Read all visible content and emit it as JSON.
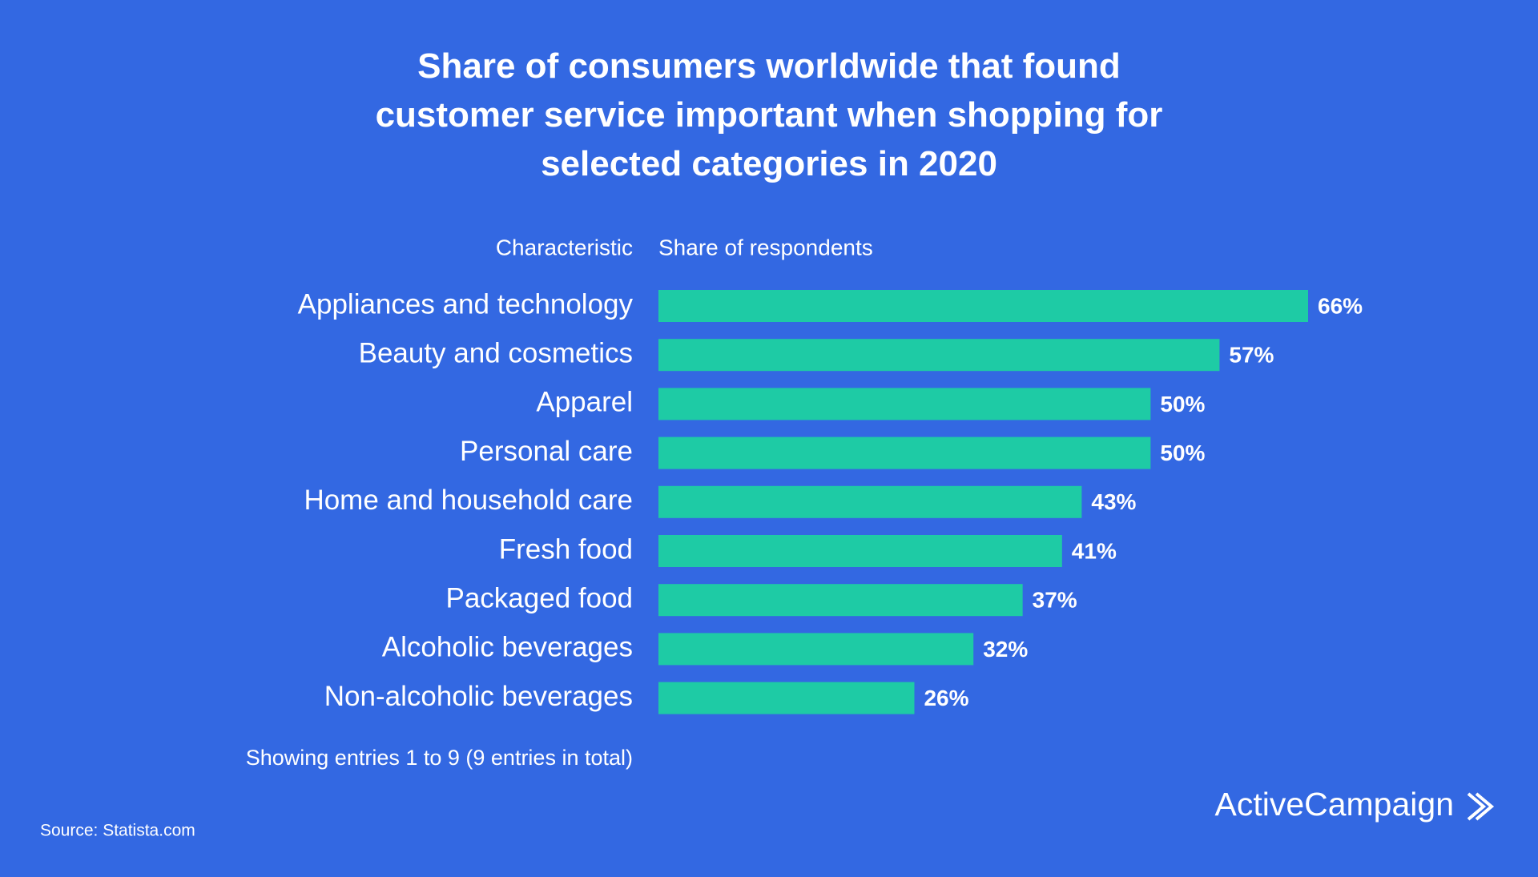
{
  "chart_data": {
    "type": "hbar",
    "title": "Share of consumers worldwide that found customer service important when shopping for selected categories in 2020",
    "category_header": "Characteristic",
    "value_header": "Share of respondents",
    "categories": [
      "Appliances and technology",
      "Beauty and cosmetics",
      "Apparel",
      "Personal care",
      "Home and household care",
      "Fresh food",
      "Packaged food",
      "Alcoholic beverages",
      "Non-alcoholic beverages"
    ],
    "values": [
      66,
      57,
      50,
      50,
      43,
      41,
      37,
      32,
      26
    ],
    "value_labels": [
      "66%",
      "57%",
      "50%",
      "50%",
      "43%",
      "41%",
      "37%",
      "32%",
      "26%"
    ],
    "color": "#1ecba5",
    "footer": "Showing entries 1 to 9 (9 entries in total)",
    "source": "Source: Statista.com",
    "brand": "ActiveCampaign"
  }
}
